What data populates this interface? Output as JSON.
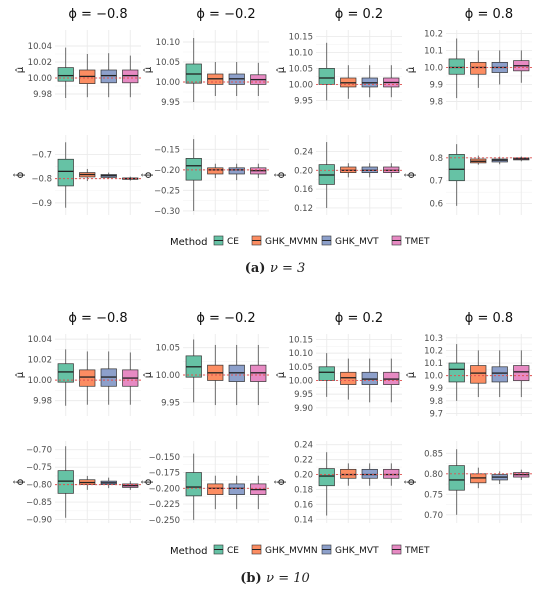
{
  "colors": {
    "CE": "#66c2a5",
    "GHK_MVMN": "#fc8d62",
    "GHK_MVT": "#8da0cb",
    "TMET": "#e78ac3",
    "grid": "#ebebeb",
    "reference_line": "#e05050"
  },
  "chart_data": [
    {
      "type": "boxplot",
      "caption": {
        "label": "(a)",
        "text": "ν = 3"
      },
      "methods": [
        "CE",
        "GHK_MVMN",
        "GHK_MVT",
        "TMET"
      ],
      "legend": {
        "title": "Method",
        "items": [
          "CE",
          "GHK_MVMN",
          "GHK_MVT",
          "TMET"
        ],
        "position": "bottom"
      },
      "facets": [
        {
          "title": "ϕ = −0.8",
          "row": "mu",
          "ylabel": "μ̂",
          "ylim": [
            9.96,
            10.06
          ],
          "yticks": [
            9.98,
            10.0,
            10.02,
            10.04
          ],
          "ytick_labels": [
            "9.98",
            "10.00",
            "10.02",
            "10.04"
          ],
          "ref": 10.0,
          "boxes": [
            [
              9.975,
              9.996,
              10.003,
              10.013,
              10.038
            ],
            [
              9.976,
              9.993,
              10.002,
              10.01,
              10.03
            ],
            [
              9.976,
              9.994,
              10.003,
              10.01,
              10.031
            ],
            [
              9.976,
              9.994,
              10.003,
              10.01,
              10.028
            ]
          ]
        },
        {
          "title": "ϕ = −0.2",
          "row": "mu",
          "ylabel": "μ̂",
          "ylim": [
            9.93,
            10.13
          ],
          "yticks": [
            9.95,
            10.0,
            10.05,
            10.1
          ],
          "ytick_labels": [
            "9.95",
            "10.00",
            "10.05",
            "10.10"
          ],
          "ref": 10.0,
          "boxes": [
            [
              9.95,
              9.997,
              10.02,
              10.045,
              10.11
            ],
            [
              9.965,
              9.994,
              10.008,
              10.02,
              10.05
            ],
            [
              9.965,
              9.994,
              10.008,
              10.02,
              10.05
            ],
            [
              9.965,
              9.994,
              10.006,
              10.018,
              10.048
            ]
          ]
        },
        {
          "title": "ϕ = 0.2",
          "row": "mu",
          "ylabel": "μ̂",
          "ylim": [
            9.92,
            10.17
          ],
          "yticks": [
            9.95,
            10.0,
            10.05,
            10.1,
            10.15
          ],
          "ytick_labels": [
            "9.95",
            "10.00",
            "10.05",
            "10.10",
            "10.15"
          ],
          "ref": 10.0,
          "boxes": [
            [
              9.95,
              10.0,
              10.02,
              10.05,
              10.13
            ],
            [
              9.955,
              9.992,
              10.005,
              10.02,
              10.06
            ],
            [
              9.96,
              9.992,
              10.005,
              10.02,
              10.06
            ],
            [
              9.96,
              9.992,
              10.006,
              10.02,
              10.06
            ]
          ]
        },
        {
          "title": "ϕ = 0.8",
          "row": "mu",
          "ylabel": "μ̂",
          "ylim": [
            9.75,
            10.22
          ],
          "yticks": [
            9.8,
            9.9,
            10.0,
            10.1,
            10.2
          ],
          "ytick_labels": [
            "9.8",
            "9.9",
            "10.0",
            "10.1",
            "10.2"
          ],
          "ref": 10.0,
          "boxes": [
            [
              9.82,
              9.96,
              10.0,
              10.05,
              10.17
            ],
            [
              9.88,
              9.96,
              10.0,
              10.03,
              10.1
            ],
            [
              9.9,
              9.97,
              10.0,
              10.03,
              10.1
            ],
            [
              9.91,
              9.98,
              10.01,
              10.04,
              10.1
            ]
          ]
        },
        {
          "title": "",
          "row": "phi",
          "ylabel": "ϕ̂",
          "ylim": [
            -0.95,
            -0.62
          ],
          "yticks": [
            -0.9,
            -0.8,
            -0.7
          ],
          "ytick_labels": [
            "−0.9",
            "−0.8",
            "−0.7"
          ],
          "ref": -0.8,
          "boxes": [
            [
              -0.92,
              -0.83,
              -0.77,
              -0.72,
              -0.65
            ],
            [
              -0.81,
              -0.793,
              -0.783,
              -0.775,
              -0.76
            ],
            [
              -0.8,
              -0.795,
              -0.788,
              -0.783,
              -0.775
            ],
            [
              -0.808,
              -0.803,
              -0.8,
              -0.797,
              -0.792
            ]
          ]
        },
        {
          "title": "",
          "row": "phi",
          "ylabel": "ϕ̂",
          "ylim": [
            -0.31,
            -0.115
          ],
          "yticks": [
            -0.3,
            -0.25,
            -0.2,
            -0.15
          ],
          "ytick_labels": [
            "−0.30",
            "−0.25",
            "−0.20",
            "−0.15"
          ],
          "ref": -0.2,
          "boxes": [
            [
              -0.3,
              -0.225,
              -0.19,
              -0.172,
              -0.125
            ],
            [
              -0.22,
              -0.21,
              -0.2,
              -0.195,
              -0.185
            ],
            [
              -0.225,
              -0.21,
              -0.2,
              -0.195,
              -0.185
            ],
            [
              -0.22,
              -0.21,
              -0.202,
              -0.195,
              -0.185
            ]
          ]
        },
        {
          "title": "",
          "row": "phi",
          "ylabel": "ϕ̂",
          "ylim": [
            0.105,
            0.275
          ],
          "yticks": [
            0.12,
            0.16,
            0.2,
            0.24
          ],
          "ytick_labels": [
            "0.12",
            "0.16",
            "0.20",
            "0.24"
          ],
          "ref": 0.2,
          "boxes": [
            [
              0.12,
              0.17,
              0.19,
              0.212,
              0.26
            ],
            [
              0.185,
              0.195,
              0.2,
              0.207,
              0.215
            ],
            [
              0.185,
              0.195,
              0.2,
              0.207,
              0.215
            ],
            [
              0.185,
              0.195,
              0.2,
              0.207,
              0.215
            ]
          ]
        },
        {
          "title": "",
          "row": "phi",
          "ylabel": "ϕ̂",
          "ylim": [
            0.55,
            0.9
          ],
          "yticks": [
            0.6,
            0.7,
            0.8
          ],
          "ytick_labels": [
            "0.6",
            "0.7",
            "0.8"
          ],
          "ref": 0.8,
          "boxes": [
            [
              0.59,
              0.7,
              0.75,
              0.815,
              0.86
            ],
            [
              0.77,
              0.778,
              0.785,
              0.795,
              0.81
            ],
            [
              0.772,
              0.782,
              0.79,
              0.795,
              0.805
            ],
            [
              0.785,
              0.791,
              0.796,
              0.8,
              0.806
            ]
          ]
        }
      ]
    },
    {
      "type": "boxplot",
      "caption": {
        "label": "(b)",
        "text": "ν = 10"
      },
      "methods": [
        "CE",
        "GHK_MVMN",
        "GHK_MVT",
        "TMET"
      ],
      "legend": {
        "title": "Method",
        "items": [
          "CE",
          "GHK_MVMN",
          "GHK_MVT",
          "TMET"
        ],
        "position": "bottom"
      },
      "facets": [
        {
          "title": "ϕ = −0.8",
          "row": "mu",
          "ylabel": "μ̂",
          "ylim": [
            9.965,
            10.045
          ],
          "yticks": [
            9.98,
            10.0,
            10.02,
            10.04
          ],
          "ytick_labels": [
            "9.98",
            "10.00",
            "10.02",
            "10.04"
          ],
          "ref": 10.0,
          "boxes": [
            [
              9.975,
              9.998,
              10.008,
              10.016,
              10.03
            ],
            [
              9.976,
              9.994,
              10.003,
              10.01,
              10.028
            ],
            [
              9.976,
              9.994,
              10.003,
              10.011,
              10.028
            ],
            [
              9.976,
              9.994,
              10.002,
              10.01,
              10.027
            ]
          ]
        },
        {
          "title": "ϕ = −0.2",
          "row": "mu",
          "ylabel": "μ̂",
          "ylim": [
            9.925,
            10.075
          ],
          "yticks": [
            9.95,
            10.0,
            10.05
          ],
          "ytick_labels": [
            "9.95",
            "10.00",
            "10.05"
          ],
          "ref": 10.0,
          "boxes": [
            [
              9.95,
              9.996,
              10.015,
              10.035,
              10.065
            ],
            [
              9.945,
              9.99,
              10.004,
              10.018,
              10.055
            ],
            [
              9.945,
              9.988,
              10.004,
              10.018,
              10.055
            ],
            [
              9.945,
              9.988,
              10.004,
              10.018,
              10.055
            ]
          ]
        },
        {
          "title": "ϕ = 0.2",
          "row": "mu",
          "ylabel": "μ̂",
          "ylim": [
            9.87,
            10.17
          ],
          "yticks": [
            9.9,
            9.95,
            10.0,
            10.05,
            10.1,
            10.15
          ],
          "ytick_labels": [
            "9.90",
            "9.95",
            "10.00",
            "10.05",
            "10.10",
            "10.15"
          ],
          "ref": 10.0,
          "boxes": [
            [
              9.94,
              10.0,
              10.03,
              10.05,
              10.1
            ],
            [
              9.93,
              9.985,
              10.01,
              10.03,
              10.08
            ],
            [
              9.92,
              9.985,
              10.005,
              10.03,
              10.08
            ],
            [
              9.92,
              9.985,
              10.005,
              10.03,
              10.08
            ]
          ]
        },
        {
          "title": "ϕ = 0.8",
          "row": "mu",
          "ylabel": "μ̂",
          "ylim": [
            9.68,
            10.33
          ],
          "yticks": [
            9.7,
            9.8,
            9.9,
            10.0,
            10.1,
            10.2,
            10.3
          ],
          "ytick_labels": [
            "9.7",
            "9.8",
            "9.9",
            "10.0",
            "10.1",
            "10.2",
            "10.3"
          ],
          "ref": 10.0,
          "boxes": [
            [
              9.8,
              9.95,
              10.05,
              10.1,
              10.25
            ],
            [
              9.83,
              9.94,
              10.02,
              10.08,
              10.2
            ],
            [
              9.83,
              9.95,
              10.02,
              10.07,
              10.2
            ],
            [
              9.83,
              9.96,
              10.03,
              10.08,
              10.2
            ]
          ]
        },
        {
          "title": "",
          "row": "phi",
          "ylabel": "ϕ̂",
          "ylim": [
            -0.91,
            -0.675
          ],
          "yticks": [
            -0.9,
            -0.85,
            -0.8,
            -0.75,
            -0.7
          ],
          "ytick_labels": [
            "−0.90",
            "−0.85",
            "−0.80",
            "−0.75",
            "−0.70"
          ],
          "ref": -0.8,
          "boxes": [
            [
              -0.895,
              -0.825,
              -0.79,
              -0.76,
              -0.69
            ],
            [
              -0.815,
              -0.8,
              -0.794,
              -0.786,
              -0.775
            ],
            [
              -0.81,
              -0.8,
              -0.795,
              -0.79,
              -0.78
            ],
            [
              -0.815,
              -0.808,
              -0.803,
              -0.798,
              -0.79
            ]
          ]
        },
        {
          "title": "",
          "row": "phi",
          "ylabel": "ϕ̂",
          "ylim": [
            -0.255,
            -0.125
          ],
          "yticks": [
            -0.25,
            -0.225,
            -0.2,
            -0.175,
            -0.15
          ],
          "ytick_labels": [
            "−0.250",
            "−0.225",
            "−0.200",
            "−0.175",
            "−0.150"
          ],
          "ref": -0.2,
          "boxes": [
            [
              -0.25,
              -0.212,
              -0.198,
              -0.175,
              -0.145
            ],
            [
              -0.233,
              -0.21,
              -0.2,
              -0.193,
              -0.18
            ],
            [
              -0.233,
              -0.21,
              -0.2,
              -0.193,
              -0.18
            ],
            [
              -0.233,
              -0.21,
              -0.202,
              -0.193,
              -0.18
            ]
          ]
        },
        {
          "title": "",
          "row": "phi",
          "ylabel": "ϕ̂",
          "ylim": [
            0.135,
            0.245
          ],
          "yticks": [
            0.14,
            0.16,
            0.18,
            0.2,
            0.22,
            0.24
          ],
          "ytick_labels": [
            "0.14",
            "0.16",
            "0.18",
            "0.20",
            "0.22",
            "0.24"
          ],
          "ref": 0.2,
          "boxes": [
            [
              0.145,
              0.185,
              0.198,
              0.208,
              0.23
            ],
            [
              0.185,
              0.195,
              0.2,
              0.207,
              0.215
            ],
            [
              0.185,
              0.195,
              0.2,
              0.207,
              0.215
            ],
            [
              0.185,
              0.195,
              0.2,
              0.207,
              0.215
            ]
          ]
        },
        {
          "title": "",
          "row": "phi",
          "ylabel": "ϕ̂",
          "ylim": [
            0.68,
            0.88
          ],
          "yticks": [
            0.7,
            0.75,
            0.8,
            0.85
          ],
          "ytick_labels": [
            "0.70",
            "0.75",
            "0.80",
            "0.85"
          ],
          "ref": 0.8,
          "boxes": [
            [
              0.7,
              0.76,
              0.785,
              0.82,
              0.86
            ],
            [
              0.765,
              0.778,
              0.79,
              0.8,
              0.815
            ],
            [
              0.775,
              0.785,
              0.792,
              0.798,
              0.806
            ],
            [
              0.785,
              0.792,
              0.798,
              0.803,
              0.81
            ]
          ]
        }
      ]
    }
  ]
}
